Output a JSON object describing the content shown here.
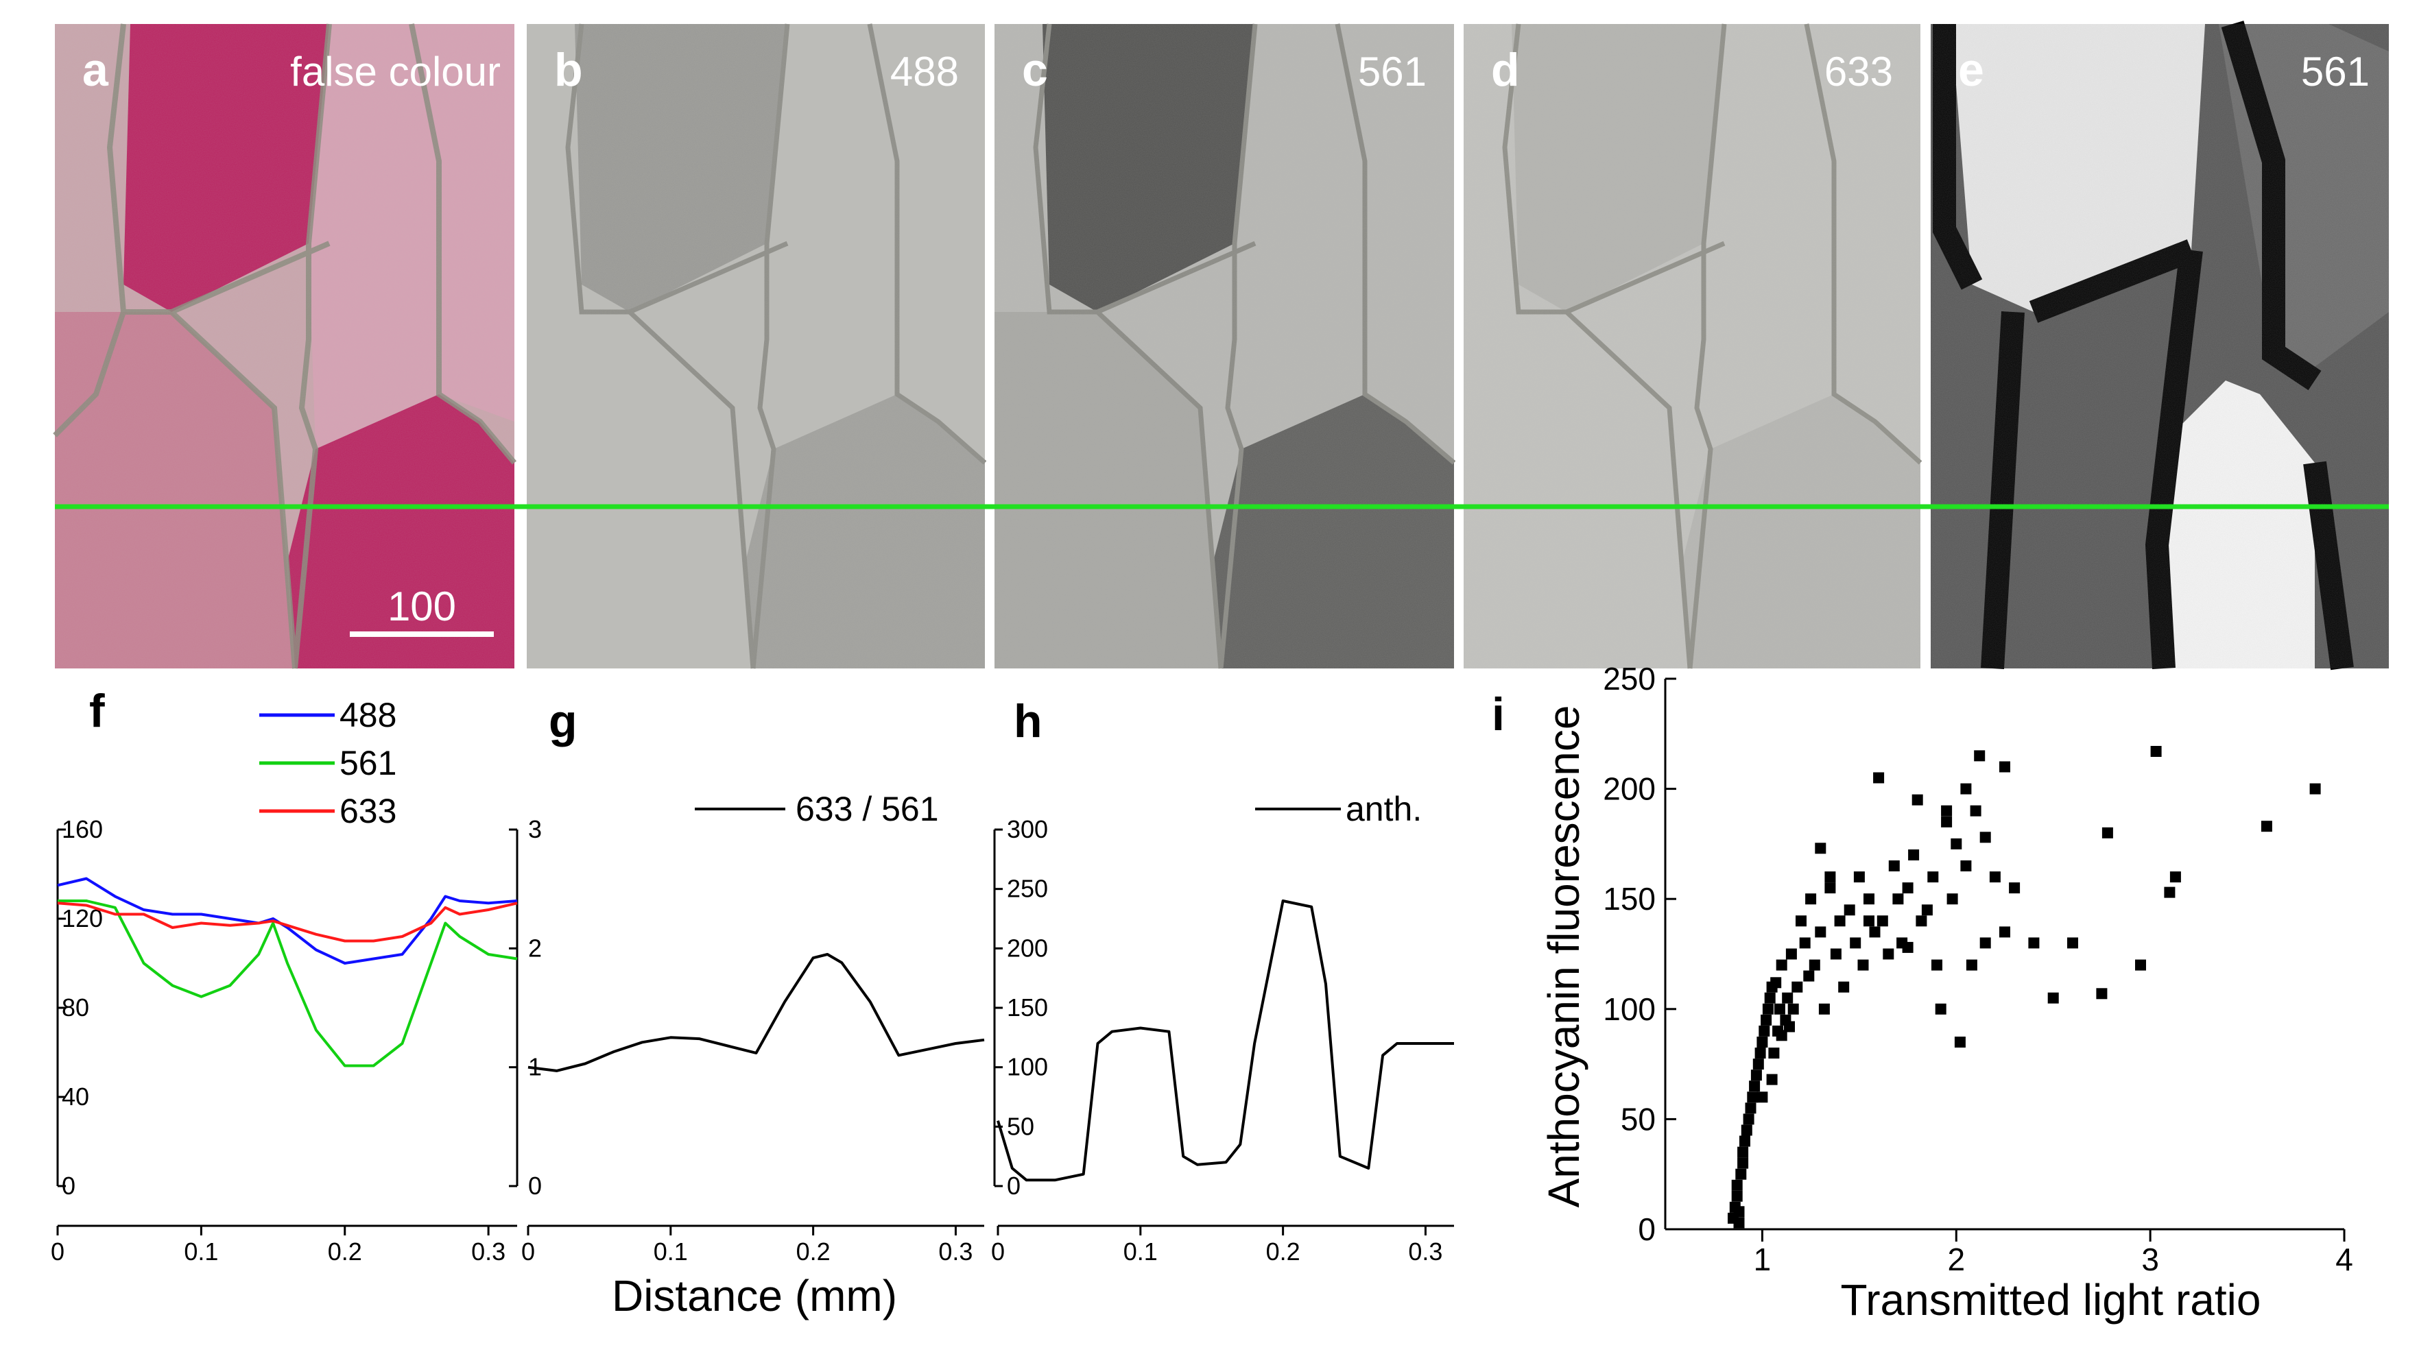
{
  "panels_top": [
    {
      "letter": "a",
      "label": "false colour",
      "kind": "false-colour"
    },
    {
      "letter": "b",
      "label": "488",
      "kind": "gray-light"
    },
    {
      "letter": "c",
      "label": "561",
      "kind": "gray-dark"
    },
    {
      "letter": "d",
      "label": "633",
      "kind": "gray-light"
    },
    {
      "letter": "e",
      "label": "561",
      "kind": "binary"
    }
  ],
  "scale_bar_label": "100",
  "colors": {
    "line_marker": "#22e022",
    "blue": "#1010ff",
    "green": "#12d012",
    "red": "#ff1a1a",
    "pink": "#b8195a"
  },
  "panel_f": {
    "letter": "f",
    "legend": [
      "488",
      "561",
      "633"
    ],
    "left_ticks": [
      "0",
      "40",
      "80",
      "120",
      "160"
    ],
    "right_ticks": [
      "0",
      "1",
      "2",
      "3"
    ],
    "x_ticks": [
      "0",
      "0.1",
      "0.2",
      "0.3"
    ]
  },
  "panel_g": {
    "letter": "g",
    "legend": "633 / 561",
    "x_ticks": [
      "0",
      "0.1",
      "0.2",
      "0.3"
    ],
    "xlabel": "Distance (mm)"
  },
  "panel_h": {
    "letter": "h",
    "legend": "anth.",
    "y_ticks": [
      "0",
      "50",
      "100",
      "150",
      "200",
      "250",
      "300"
    ],
    "x_ticks": [
      "0",
      "0.1",
      "0.2",
      "0.3"
    ]
  },
  "panel_i": {
    "letter": "i",
    "xlabel": "Transmitted light ratio",
    "ylabel": "Anthocyanin fluorescence",
    "x_ticks": [
      "1",
      "2",
      "3",
      "4"
    ],
    "y_ticks": [
      "0",
      "50",
      "100",
      "150",
      "200",
      "250"
    ]
  },
  "chart_data": [
    {
      "type": "line",
      "panel": "f",
      "x": [
        0,
        0.02,
        0.04,
        0.06,
        0.08,
        0.1,
        0.12,
        0.14,
        0.15,
        0.16,
        0.18,
        0.2,
        0.22,
        0.24,
        0.26,
        0.27,
        0.28,
        0.3,
        0.32
      ],
      "series": [
        {
          "name": "488",
          "values": [
            135,
            138,
            130,
            124,
            122,
            122,
            120,
            118,
            120,
            116,
            106,
            100,
            102,
            104,
            120,
            130,
            128,
            127,
            128
          ]
        },
        {
          "name": "561",
          "values": [
            128,
            128,
            125,
            100,
            90,
            85,
            90,
            104,
            118,
            100,
            70,
            54,
            54,
            64,
            100,
            118,
            112,
            104,
            102
          ]
        },
        {
          "name": "633",
          "values": [
            127,
            126,
            122,
            122,
            116,
            118,
            117,
            118,
            119,
            117,
            113,
            110,
            110,
            112,
            118,
            125,
            122,
            124,
            127
          ]
        }
      ],
      "ylim": [
        0,
        160
      ],
      "xlim": [
        0,
        0.32
      ]
    },
    {
      "type": "line",
      "panel": "g",
      "x": [
        0,
        0.02,
        0.04,
        0.06,
        0.08,
        0.1,
        0.12,
        0.14,
        0.16,
        0.18,
        0.2,
        0.21,
        0.22,
        0.24,
        0.26,
        0.28,
        0.3,
        0.32
      ],
      "series": [
        {
          "name": "633 / 561",
          "values": [
            1.0,
            0.97,
            1.03,
            1.13,
            1.21,
            1.25,
            1.24,
            1.18,
            1.12,
            1.55,
            1.92,
            1.95,
            1.88,
            1.55,
            1.1,
            1.15,
            1.2,
            1.23
          ]
        }
      ],
      "ylim": [
        0,
        3
      ],
      "xlim": [
        0,
        0.32
      ]
    },
    {
      "type": "line",
      "panel": "h",
      "x": [
        0,
        0.01,
        0.02,
        0.04,
        0.06,
        0.07,
        0.08,
        0.1,
        0.12,
        0.13,
        0.14,
        0.16,
        0.17,
        0.18,
        0.2,
        0.22,
        0.23,
        0.24,
        0.26,
        0.27,
        0.28,
        0.3,
        0.32
      ],
      "series": [
        {
          "name": "anth.",
          "values": [
            55,
            15,
            5,
            5,
            10,
            120,
            130,
            133,
            130,
            25,
            18,
            20,
            35,
            120,
            240,
            235,
            170,
            25,
            15,
            110,
            120,
            120,
            120
          ]
        }
      ],
      "ylim": [
        0,
        300
      ],
      "xlim": [
        0,
        0.32
      ]
    },
    {
      "type": "scatter",
      "panel": "i",
      "xlim": [
        0.5,
        4
      ],
      "ylim": [
        0,
        250
      ],
      "x": [
        0.85,
        0.86,
        0.87,
        0.87,
        0.88,
        0.88,
        0.89,
        0.9,
        0.9,
        0.91,
        0.92,
        0.93,
        0.94,
        0.95,
        0.96,
        0.97,
        0.98,
        0.99,
        1.0,
        1.0,
        1.01,
        1.02,
        1.03,
        1.04,
        1.05,
        1.05,
        1.06,
        1.07,
        1.08,
        1.09,
        1.1,
        1.1,
        1.12,
        1.13,
        1.14,
        1.15,
        1.16,
        1.18,
        1.2,
        1.22,
        1.24,
        1.25,
        1.27,
        1.3,
        1.32,
        1.35,
        1.38,
        1.4,
        1.42,
        1.45,
        1.48,
        1.5,
        1.52,
        1.55,
        1.58,
        1.6,
        1.62,
        1.65,
        1.68,
        1.7,
        1.72,
        1.75,
        1.78,
        1.8,
        1.82,
        1.85,
        1.88,
        1.9,
        1.92,
        1.95,
        1.98,
        2.0,
        2.02,
        2.05,
        2.08,
        2.1,
        2.12,
        2.15,
        2.2,
        2.25,
        2.3,
        2.4,
        2.5,
        2.6,
        2.75,
        2.78,
        2.95,
        3.03,
        3.1,
        3.13,
        3.6,
        3.85,
        1.3,
        1.35,
        1.55,
        1.75,
        1.95,
        2.05,
        2.15,
        2.25
      ],
      "y": [
        5,
        10,
        15,
        20,
        3,
        8,
        25,
        30,
        35,
        40,
        45,
        50,
        55,
        60,
        65,
        70,
        75,
        80,
        85,
        60,
        90,
        95,
        100,
        105,
        68,
        110,
        80,
        112,
        90,
        100,
        88,
        120,
        95,
        105,
        92,
        125,
        100,
        110,
        140,
        130,
        115,
        150,
        120,
        135,
        100,
        155,
        125,
        140,
        110,
        145,
        130,
        160,
        120,
        150,
        135,
        205,
        140,
        125,
        165,
        150,
        130,
        155,
        170,
        195,
        140,
        145,
        160,
        120,
        100,
        190,
        150,
        175,
        85,
        200,
        120,
        190,
        215,
        130,
        160,
        210,
        155,
        130,
        105,
        130,
        107,
        180,
        120,
        217,
        153,
        160,
        183,
        200,
        173,
        160,
        140,
        128,
        185,
        165,
        178,
        135
      ]
    }
  ]
}
